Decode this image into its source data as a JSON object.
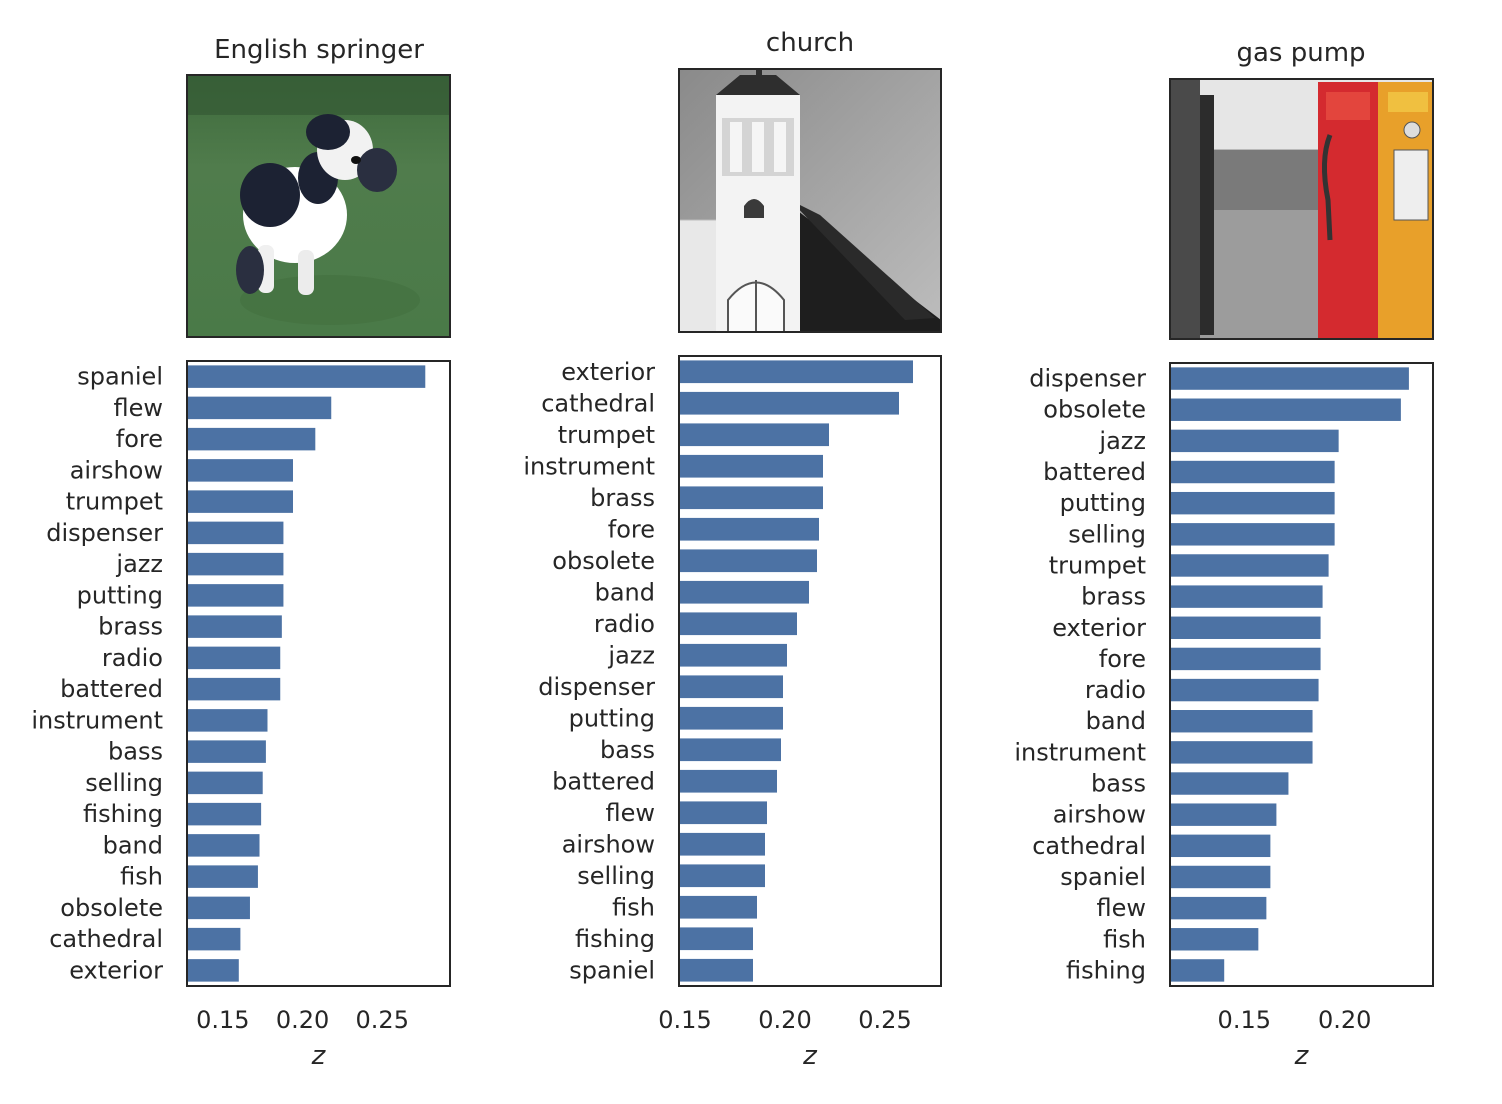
{
  "chart_data": [
    {
      "type": "bar",
      "orientation": "horizontal",
      "title": "English springer",
      "picture": "dog-photo",
      "xlabel": "z",
      "xlim": [
        0.1275,
        0.2925
      ],
      "xticks": [
        "0.15",
        "0.20",
        "0.25"
      ],
      "categories": [
        "spaniel",
        "flew",
        "fore",
        "airshow",
        "trumpet",
        "dispenser",
        "jazz",
        "putting",
        "brass",
        "radio",
        "battered",
        "instrument",
        "bass",
        "selling",
        "fishing",
        "band",
        "fish",
        "obsolete",
        "cathedral",
        "exterior"
      ],
      "values": [
        0.277,
        0.218,
        0.208,
        0.194,
        0.194,
        0.188,
        0.188,
        0.188,
        0.187,
        0.186,
        0.186,
        0.178,
        0.177,
        0.175,
        0.174,
        0.173,
        0.172,
        0.167,
        0.161,
        0.16
      ],
      "color": "#4c72a4",
      "grid": false
    },
    {
      "type": "bar",
      "orientation": "horizontal",
      "title": "church",
      "picture": "church-photo",
      "xlabel": "z",
      "xlim": [
        0.147,
        0.278
      ],
      "xticks": [
        "0.15",
        "0.20",
        "0.25"
      ],
      "categories": [
        "exterior",
        "cathedral",
        "trumpet",
        "instrument",
        "brass",
        "fore",
        "obsolete",
        "band",
        "radio",
        "jazz",
        "dispenser",
        "putting",
        "bass",
        "battered",
        "flew",
        "airshow",
        "selling",
        "fish",
        "fishing",
        "spaniel"
      ],
      "values": [
        0.264,
        0.257,
        0.222,
        0.219,
        0.219,
        0.217,
        0.216,
        0.212,
        0.206,
        0.201,
        0.199,
        0.199,
        0.198,
        0.196,
        0.191,
        0.19,
        0.19,
        0.186,
        0.184,
        0.184
      ],
      "color": "#4c72a4",
      "grid": false
    },
    {
      "type": "bar",
      "orientation": "horizontal",
      "title": "gas pump",
      "picture": "gas-pump-photo",
      "xlabel": "z",
      "xlim": [
        0.113,
        0.244
      ],
      "xticks": [
        "0.15",
        "0.20"
      ],
      "categories": [
        "dispenser",
        "obsolete",
        "jazz",
        "battered",
        "putting",
        "selling",
        "trumpet",
        "brass",
        "exterior",
        "fore",
        "radio",
        "band",
        "instrument",
        "bass",
        "airshow",
        "cathedral",
        "spaniel",
        "flew",
        "fish",
        "fishing"
      ],
      "values": [
        0.232,
        0.228,
        0.197,
        0.195,
        0.195,
        0.195,
        0.192,
        0.189,
        0.188,
        0.188,
        0.187,
        0.184,
        0.184,
        0.172,
        0.166,
        0.163,
        0.163,
        0.161,
        0.157,
        0.14
      ],
      "color": "#4c72a4",
      "grid": false
    }
  ]
}
